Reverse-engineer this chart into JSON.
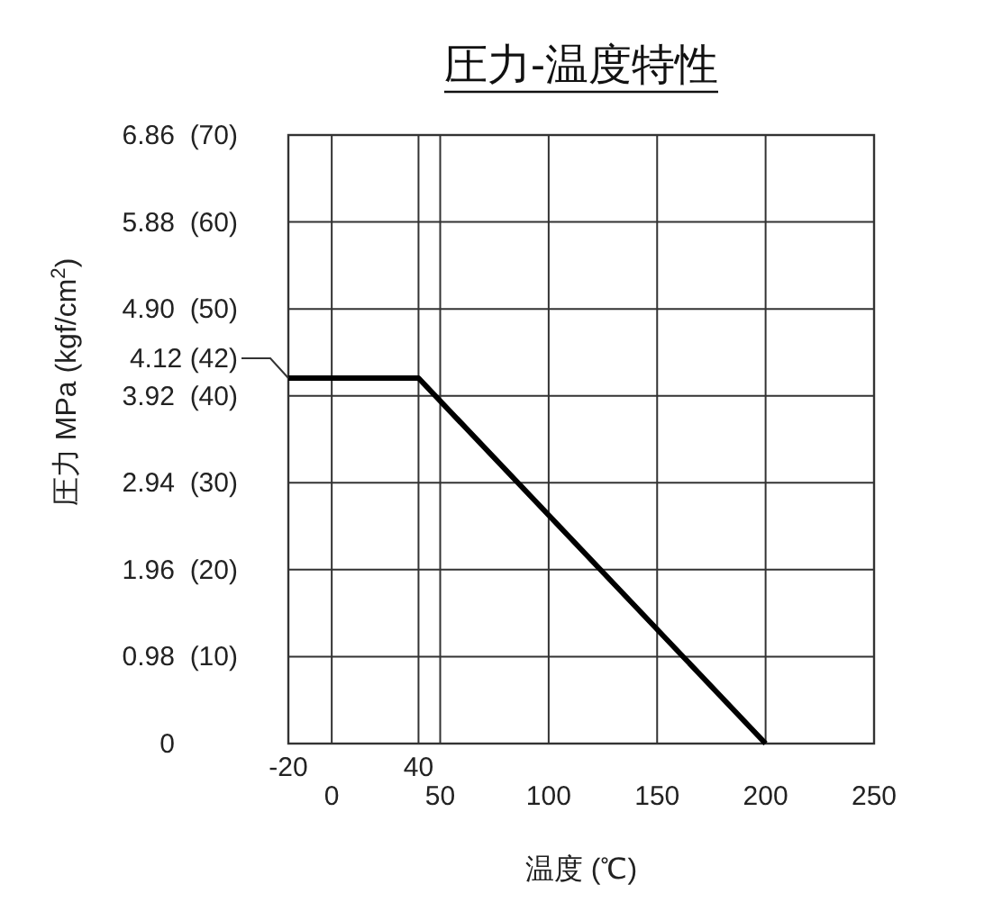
{
  "chart_data": {
    "type": "line",
    "title": "圧力-温度特性",
    "xlabel": "温度 (℃)",
    "ylabel": "圧力 MPa (kgf/cm$^{2}$)",
    "x": [
      -20,
      40,
      200
    ],
    "series": [
      {
        "color": "#000000",
        "values": [
          4.12,
          4.12,
          0
        ]
      }
    ],
    "xlim": [
      -20,
      250
    ],
    "ylim": [
      0,
      6.86
    ],
    "xticks": [
      0,
      50,
      100,
      150,
      200,
      250
    ],
    "x2lim": [
      -20,
      250
    ],
    "x2ticks": [
      -20,
      40
    ],
    "yticks": [
      0,
      0.98,
      1.96,
      2.94,
      3.92,
      {
        "value": 4.9,
        "label": "4.90"
      },
      5.88,
      6.86
    ],
    "y2lim": [
      0,
      70
    ],
    "y2ticks": [
      {
        "value": 10,
        "label": "(10)"
      },
      {
        "value": 20,
        "label": "(20)"
      },
      {
        "value": 30,
        "label": "(30)"
      },
      {
        "value": 40,
        "label": "(40)"
      },
      {
        "value": 50,
        "label": "(50)"
      },
      {
        "value": 60,
        "label": "(60)"
      },
      {
        "value": 70,
        "label": "(70)"
      }
    ],
    "grid": true,
    "annotations": [
      {
        "text": "4.12 (42)",
        "x": -20,
        "y": 4.12
      }
    ]
  }
}
